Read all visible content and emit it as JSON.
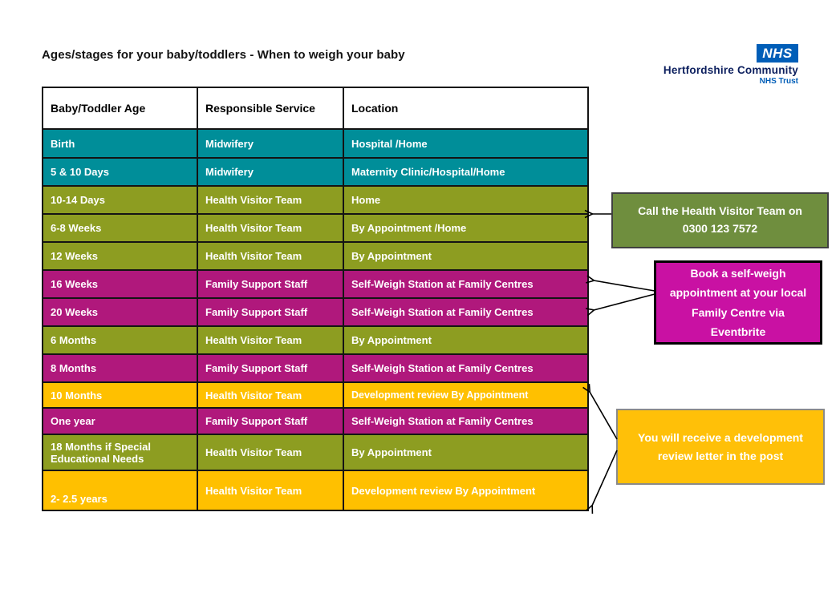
{
  "title": "Ages/stages for your baby/toddlers - When to weigh your baby",
  "logo": {
    "nhs": "NHS",
    "org": "Hertfordshire Community",
    "sub": "NHS Trust"
  },
  "table": {
    "headers": [
      "Baby/Toddler Age",
      "Responsible Service",
      "Location"
    ],
    "row_fields": [
      "age",
      "service",
      "location"
    ],
    "rows": [
      {
        "age": "Birth",
        "service": "Midwifery",
        "location": "Hospital /Home",
        "color": "teal"
      },
      {
        "age": "5 & 10 Days",
        "service": "Midwifery",
        "location": "Maternity Clinic/Hospital/Home",
        "color": "teal"
      },
      {
        "age": "10-14 Days",
        "service": "Health Visitor Team",
        "location": "Home",
        "color": "olive"
      },
      {
        "age": "6-8 Weeks",
        "service": "Health Visitor Team",
        "location": "By Appointment /Home",
        "color": "olive"
      },
      {
        "age": "12 Weeks",
        "service": "Health Visitor Team",
        "location": "By Appointment",
        "color": "olive"
      },
      {
        "age": "16 Weeks",
        "service": "Family Support Staff",
        "location": "Self-Weigh Station at Family Centres",
        "color": "magenta"
      },
      {
        "age": "20 Weeks",
        "service": "Family Support Staff",
        "location": "Self-Weigh Station at Family Centres",
        "color": "magenta"
      },
      {
        "age": "6 Months",
        "service": "Health Visitor Team",
        "location": "By Appointment",
        "color": "olive"
      },
      {
        "age": "8 Months",
        "service": "Family Support Staff",
        "location": "Self-Weigh Station at Family Centres",
        "color": "magenta"
      },
      {
        "age": "10 Months",
        "service": "Health Visitor Team",
        "location": "Development review By Appointment",
        "color": "amber"
      },
      {
        "age": "One year",
        "service": "Family Support Staff",
        "location": "Self-Weigh Station at Family Centres",
        "color": "magenta"
      },
      {
        "age": "18 Months if Special Educational Needs",
        "service": "Health Visitor Team",
        "location": "By Appointment",
        "color": "olive"
      },
      {
        "age": "2- 2.5 years",
        "service": "Health Visitor Team",
        "location": "Development review By Appointment",
        "color": "amber"
      }
    ]
  },
  "callouts": {
    "health_visitor": {
      "text": "Call the Health Visitor Team on 0300 123 7572"
    },
    "self_weigh": {
      "text": "Book a self-weigh appointment at your local Family Centre via Eventbrite"
    },
    "development_review": {
      "text": "You will receive a development review letter in the post"
    }
  },
  "colors": {
    "teal": "#008e99",
    "olive": "#8d9d21",
    "magenta": "#b0187c",
    "amber": "#ffc000",
    "callout_green": "#6f8e3e",
    "callout_magenta": "#c911a3",
    "callout_amber": "#ffc008",
    "nhs_blue": "#005eb8",
    "nhs_dark": "#0c1f5e"
  }
}
